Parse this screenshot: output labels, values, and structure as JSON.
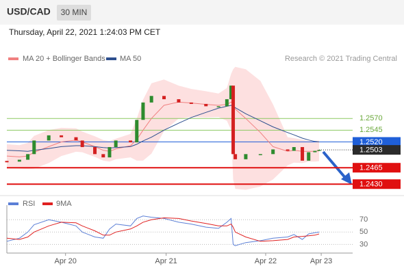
{
  "chart_data": [
    {
      "type": "candlestick",
      "title": "USD/CAD",
      "timeframe": "30 MIN",
      "subtitle": "Thursday, April 22, 2021 1:24:03 PM CET",
      "annotation": "Research © 2021 Trading Central",
      "x": [
        0,
        6,
        10,
        13,
        20,
        26,
        33,
        36,
        42,
        46,
        49,
        52,
        59,
        62,
        65,
        69,
        75,
        82,
        88,
        95,
        101,
        105,
        107,
        108,
        109,
        114,
        121,
        127,
        134,
        137,
        141,
        144,
        147,
        149
      ],
      "values": [
        1.2478,
        1.2482,
        1.2494,
        1.2523,
        1.2534,
        1.253,
        1.2523,
        1.2509,
        1.2494,
        1.2487,
        1.2509,
        1.2523,
        1.2519,
        1.2567,
        1.2604,
        1.2618,
        1.2611,
        1.2604,
        1.2601,
        1.2596,
        1.2596,
        1.2611,
        1.264,
        1.2494,
        1.2483,
        1.2494,
        1.2494,
        1.2504,
        1.2501,
        1.2509,
        1.248,
        1.2498,
        1.2501,
        1.2503
      ],
      "up_color": "#2e8b2e",
      "down_color": "#d42020",
      "series": [
        {
          "name": "MA 20 + Bollinger Bands",
          "color": "#f08080",
          "band_color": "#fde0e0",
          "values": [
            1.249,
            1.2488,
            1.249,
            1.2498,
            1.251,
            1.252,
            1.2524,
            1.252,
            1.251,
            1.2502,
            1.25,
            1.2505,
            1.2512,
            1.2525,
            1.2545,
            1.257,
            1.2598,
            1.2605,
            1.2603,
            1.26,
            1.2598,
            1.26,
            1.2605,
            1.26,
            1.259,
            1.257,
            1.254,
            1.251,
            1.25,
            1.2502,
            1.25,
            1.25,
            1.25,
            1.2501
          ],
          "upper": [
            1.2515,
            1.2513,
            1.2518,
            1.2533,
            1.2545,
            1.255,
            1.2549,
            1.2542,
            1.2532,
            1.2524,
            1.2522,
            1.2527,
            1.2537,
            1.257,
            1.261,
            1.2645,
            1.2653,
            1.264,
            1.2633,
            1.2628,
            1.2623,
            1.2635,
            1.2665,
            1.2675,
            1.268,
            1.2675,
            1.265,
            1.26,
            1.253,
            1.2528,
            1.2525,
            1.2522,
            1.2522,
            1.2523
          ],
          "lower": [
            1.2465,
            1.2463,
            1.2462,
            1.2463,
            1.2475,
            1.249,
            1.2499,
            1.2498,
            1.2488,
            1.248,
            1.2478,
            1.2483,
            1.2487,
            1.248,
            1.248,
            1.2495,
            1.2543,
            1.257,
            1.2573,
            1.2572,
            1.2573,
            1.2565,
            1.2545,
            1.244,
            1.242,
            1.2418,
            1.2425,
            1.244,
            1.247,
            1.2476,
            1.2475,
            1.2478,
            1.2478,
            1.2479
          ]
        },
        {
          "name": "MA 50",
          "color": "#2d4f8e",
          "values": [
            1.2502,
            1.2501,
            1.25,
            1.2502,
            1.2506,
            1.251,
            1.2512,
            1.2512,
            1.251,
            1.2508,
            1.2507,
            1.2508,
            1.251,
            1.2515,
            1.2522,
            1.253,
            1.2545,
            1.256,
            1.2572,
            1.2583,
            1.2592,
            1.2596,
            1.2598,
            1.2596,
            1.2593,
            1.258,
            1.2565,
            1.2552,
            1.254,
            1.2535,
            1.2528,
            1.2524,
            1.2521,
            1.252
          ]
        }
      ],
      "levels": [
        {
          "value": 1.257,
          "label": "1.2570",
          "color": "#8cc860",
          "style": "resistance"
        },
        {
          "value": 1.2545,
          "label": "1.2545",
          "color": "#8cc860",
          "style": "resistance"
        },
        {
          "value": 1.252,
          "label": "1.2520",
          "color": "#1f5fd8",
          "style": "pivot"
        },
        {
          "value": 1.2503,
          "label": "1.2503",
          "color": "#2b2b2b",
          "style": "last"
        },
        {
          "value": 1.2465,
          "label": "1.2465",
          "color": "#e01010",
          "style": "support"
        },
        {
          "value": 1.243,
          "label": "1.2430",
          "color": "#e01010",
          "style": "support"
        }
      ],
      "xlim": [
        0,
        165
      ],
      "ylim": [
        1.2407,
        1.2684
      ]
    },
    {
      "type": "line",
      "x": [
        0,
        6,
        10,
        13,
        20,
        26,
        33,
        36,
        42,
        46,
        49,
        52,
        59,
        62,
        65,
        69,
        75,
        82,
        88,
        95,
        101,
        105,
        107,
        108,
        109,
        114,
        121,
        127,
        134,
        137,
        141,
        144,
        147,
        149
      ],
      "series": [
        {
          "name": "RSI",
          "color": "#5b7fd6",
          "values": [
            35,
            40,
            50,
            62,
            70,
            66,
            60,
            50,
            42,
            40,
            55,
            63,
            60,
            72,
            76,
            74,
            72,
            66,
            63,
            58,
            56,
            66,
            72,
            30,
            28,
            33,
            36,
            40,
            42,
            46,
            38,
            47,
            49,
            50
          ]
        },
        {
          "name": "9MA",
          "color": "#e02020",
          "values": [
            40,
            38,
            42,
            50,
            60,
            66,
            65,
            60,
            52,
            45,
            45,
            50,
            55,
            60,
            66,
            70,
            73,
            72,
            68,
            64,
            60,
            60,
            63,
            58,
            50,
            42,
            35,
            36,
            38,
            42,
            43,
            44,
            45,
            47
          ]
        }
      ],
      "xlim": [
        0,
        165
      ],
      "ylim": [
        16,
        88
      ],
      "yticks": [
        30,
        50,
        70
      ],
      "xticks": [
        {
          "value": 28,
          "label": "Apr 20"
        },
        {
          "value": 76,
          "label": "Apr 21"
        },
        {
          "value": 123.5,
          "label": "Apr 22"
        },
        {
          "value": 150,
          "label": "Apr 23"
        }
      ]
    }
  ]
}
